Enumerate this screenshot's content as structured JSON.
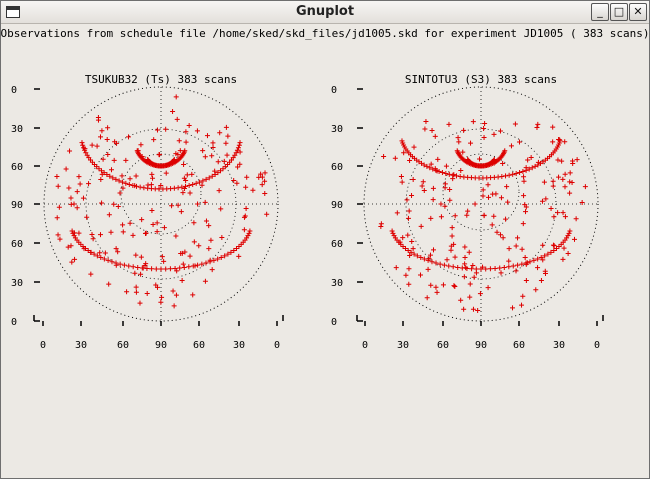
{
  "window": {
    "title": "Gnuplot",
    "minimize_glyph": "_",
    "maximize_glyph": "□",
    "close_glyph": "✕"
  },
  "plot": {
    "heading": "Observations from schedule file /home/sked/skd_files/jd1005.skd for experiment JD1005   ( 383 scans)",
    "point_color": "#dd0000",
    "panels": [
      {
        "title": "TSUKUB32 (Ts)  383 scans",
        "seed": 7
      },
      {
        "title": "SINTOTU3 (S3)  383 scans",
        "seed": 13
      }
    ],
    "y_ticks": [
      "0",
      "30",
      "60",
      "90",
      "60",
      "30",
      "0"
    ],
    "x_ticks": [
      "0",
      "30",
      "60",
      "90",
      "60",
      "30",
      "0"
    ]
  },
  "chart_data": [
    {
      "type": "scatter",
      "title": "TSUKUB32 (Ts)  383 scans",
      "point_count": 383,
      "marker": "+",
      "y_tick_labels": [
        "0",
        "30",
        "60",
        "90",
        "60",
        "30",
        "0"
      ],
      "x_tick_labels": [
        "0",
        "30",
        "60",
        "90",
        "60",
        "30",
        "0"
      ]
    },
    {
      "type": "scatter",
      "title": "SINTOTU3 (S3)  383 scans",
      "point_count": 383,
      "marker": "+",
      "y_tick_labels": [
        "0",
        "30",
        "60",
        "90",
        "60",
        "30",
        "0"
      ],
      "x_tick_labels": [
        "0",
        "30",
        "60",
        "90",
        "60",
        "30",
        "0"
      ]
    }
  ]
}
